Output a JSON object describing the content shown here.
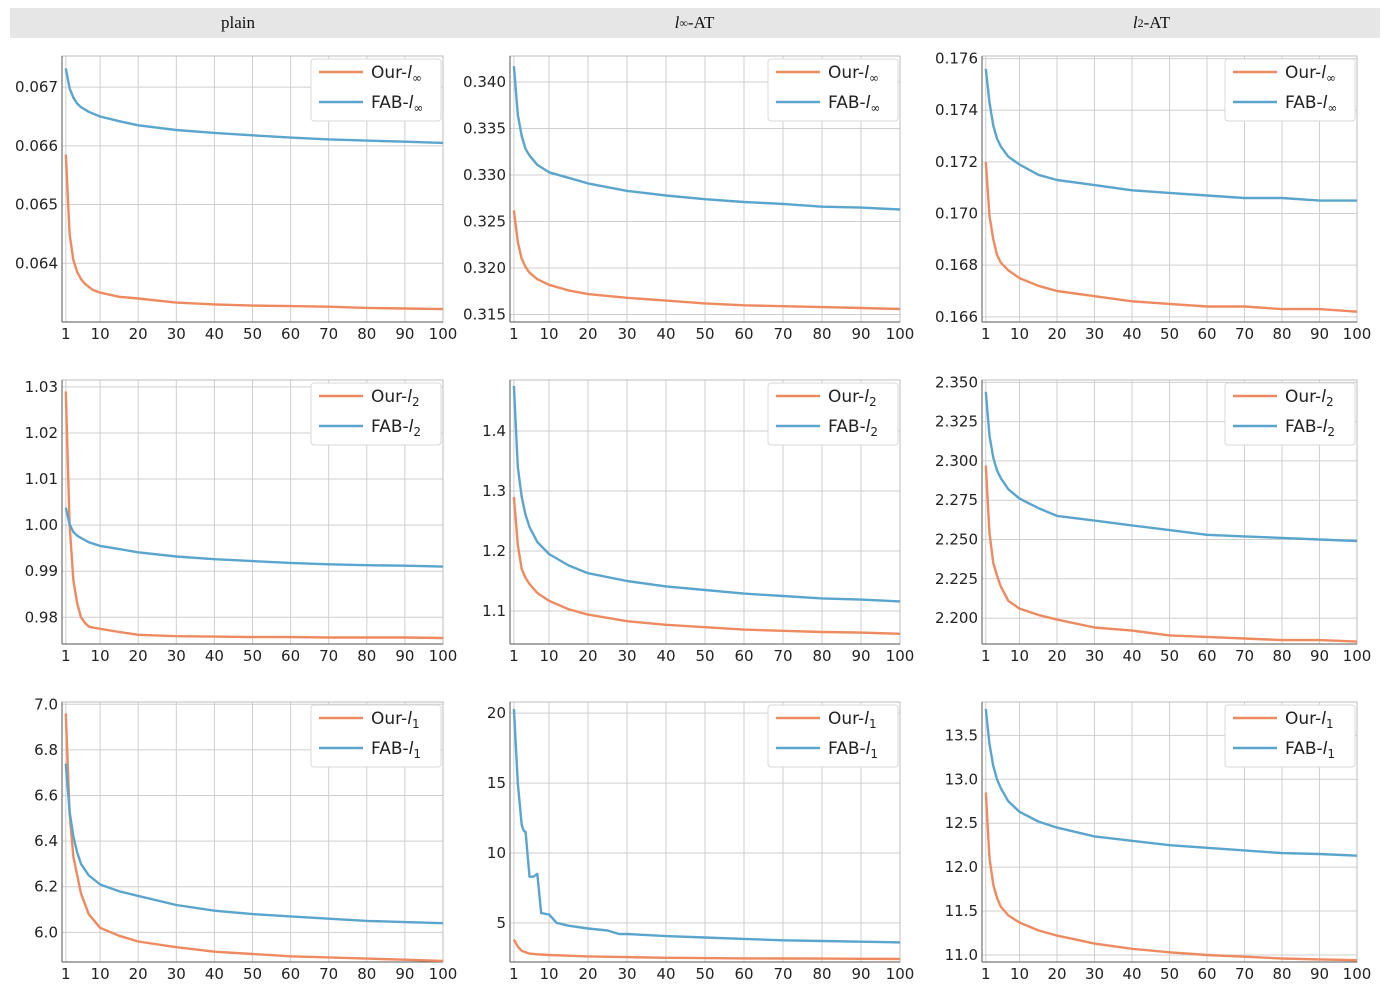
{
  "columns": [
    {
      "base": "plain",
      "sub": "",
      "suffix": ""
    },
    {
      "base": "l",
      "sub": "∞",
      "suffix": "-AT"
    },
    {
      "base": "l",
      "sub": "2",
      "suffix": "-AT"
    }
  ],
  "colors": {
    "ours": "#ee8a5f",
    "fab": "#5aa5cd",
    "grid": "#cfcfcf",
    "frame": "#bdbdbd",
    "header": "#e6e6e6"
  },
  "chart_data": [
    {
      "type": "line",
      "row": 0,
      "col": 0,
      "xlim": [
        0,
        100
      ],
      "ylim": [
        0.063,
        0.06753
      ],
      "xticks": [
        1,
        10,
        20,
        30,
        40,
        50,
        60,
        70,
        80,
        90,
        100
      ],
      "yticks": [
        0.064,
        0.065,
        0.066,
        0.067
      ],
      "yfmt": 3,
      "legend_sub": "∞",
      "series": [
        {
          "name": "Our",
          "norm": "∞",
          "x": [
            1,
            2,
            3,
            4,
            5,
            6,
            7,
            8,
            10,
            15,
            20,
            30,
            40,
            50,
            60,
            70,
            80,
            90,
            100
          ],
          "values": [
            0.06585,
            0.0645,
            0.06405,
            0.06385,
            0.06373,
            0.06365,
            0.0636,
            0.06355,
            0.0635,
            0.06343,
            0.0634,
            0.06333,
            0.0633,
            0.06328,
            0.06327,
            0.06326,
            0.06324,
            0.06323,
            0.06322
          ]
        },
        {
          "name": "FAB",
          "norm": "∞",
          "x": [
            1,
            2,
            3,
            4,
            5,
            7,
            10,
            15,
            20,
            30,
            40,
            50,
            60,
            70,
            80,
            90,
            100
          ],
          "values": [
            0.06732,
            0.06698,
            0.06682,
            0.06672,
            0.06666,
            0.06658,
            0.0665,
            0.06642,
            0.06635,
            0.06627,
            0.06622,
            0.06618,
            0.06614,
            0.06611,
            0.06609,
            0.06607,
            0.06605
          ]
        }
      ]
    },
    {
      "type": "line",
      "row": 0,
      "col": 1,
      "xlim": [
        0,
        100
      ],
      "ylim": [
        0.3142,
        0.3428
      ],
      "xticks": [
        1,
        10,
        20,
        30,
        40,
        50,
        60,
        70,
        80,
        90,
        100
      ],
      "yticks": [
        0.315,
        0.32,
        0.325,
        0.33,
        0.335,
        0.34
      ],
      "yfmt": 3,
      "legend_sub": "∞",
      "series": [
        {
          "name": "Our",
          "norm": "∞",
          "x": [
            1,
            2,
            3,
            4,
            5,
            7,
            10,
            15,
            20,
            30,
            40,
            50,
            60,
            70,
            80,
            90,
            100
          ],
          "values": [
            0.3262,
            0.3228,
            0.321,
            0.3201,
            0.3195,
            0.3188,
            0.3182,
            0.3176,
            0.3172,
            0.3168,
            0.3165,
            0.3162,
            0.316,
            0.3159,
            0.3158,
            0.3157,
            0.3156
          ]
        },
        {
          "name": "FAB",
          "norm": "∞",
          "x": [
            1,
            2,
            3,
            4,
            5,
            7,
            10,
            15,
            20,
            30,
            40,
            50,
            60,
            70,
            80,
            90,
            100
          ],
          "values": [
            0.3417,
            0.3365,
            0.3342,
            0.3328,
            0.3321,
            0.3311,
            0.3303,
            0.3297,
            0.3291,
            0.3283,
            0.3278,
            0.3274,
            0.3271,
            0.3269,
            0.3266,
            0.3265,
            0.3263
          ]
        }
      ]
    },
    {
      "type": "line",
      "row": 0,
      "col": 2,
      "xlim": [
        0,
        100
      ],
      "ylim": [
        0.1658,
        0.1761
      ],
      "xticks": [
        1,
        10,
        20,
        30,
        40,
        50,
        60,
        70,
        80,
        90,
        100
      ],
      "yticks": [
        0.166,
        0.168,
        0.17,
        0.172,
        0.174,
        0.176
      ],
      "yfmt": 3,
      "legend_sub": "∞",
      "series": [
        {
          "name": "Our",
          "norm": "∞",
          "x": [
            1,
            2,
            3,
            4,
            5,
            7,
            10,
            15,
            20,
            30,
            40,
            50,
            60,
            70,
            80,
            90,
            100
          ],
          "values": [
            0.172,
            0.1699,
            0.169,
            0.1684,
            0.1681,
            0.1678,
            0.1675,
            0.1672,
            0.167,
            0.1668,
            0.1666,
            0.1665,
            0.1664,
            0.1664,
            0.1663,
            0.1663,
            0.1662
          ]
        },
        {
          "name": "FAB",
          "norm": "∞",
          "x": [
            1,
            2,
            3,
            4,
            5,
            7,
            10,
            15,
            20,
            30,
            40,
            50,
            60,
            70,
            80,
            90,
            100
          ],
          "values": [
            0.1756,
            0.1743,
            0.1734,
            0.1729,
            0.1726,
            0.1722,
            0.1719,
            0.1715,
            0.1713,
            0.1711,
            0.1709,
            0.1708,
            0.1707,
            0.1706,
            0.1706,
            0.1705,
            0.1705
          ]
        }
      ]
    },
    {
      "type": "line",
      "row": 1,
      "col": 0,
      "xlim": [
        0,
        100
      ],
      "ylim": [
        0.9742,
        1.0315
      ],
      "xticks": [
        1,
        10,
        20,
        30,
        40,
        50,
        60,
        70,
        80,
        90,
        100
      ],
      "yticks": [
        0.98,
        0.99,
        1.0,
        1.01,
        1.02,
        1.03
      ],
      "yfmt": 2,
      "legend_sub": "2",
      "series": [
        {
          "name": "Our",
          "norm": "2",
          "x": [
            1,
            2,
            3,
            4,
            5,
            6,
            7,
            8,
            10,
            15,
            20,
            30,
            40,
            50,
            60,
            70,
            80,
            90,
            100
          ],
          "values": [
            1.029,
            1.0,
            0.988,
            0.983,
            0.98,
            0.9788,
            0.978,
            0.9778,
            0.9775,
            0.9768,
            0.9762,
            0.9759,
            0.9758,
            0.9757,
            0.9757,
            0.9756,
            0.9756,
            0.9756,
            0.9755
          ]
        },
        {
          "name": "FAB",
          "norm": "2",
          "x": [
            1,
            2,
            3,
            4,
            5,
            7,
            10,
            15,
            20,
            30,
            40,
            50,
            60,
            70,
            80,
            90,
            100
          ],
          "values": [
            1.0038,
            1.0002,
            0.9985,
            0.9977,
            0.9972,
            0.9963,
            0.9955,
            0.9948,
            0.9941,
            0.9932,
            0.9926,
            0.9922,
            0.9918,
            0.9915,
            0.9913,
            0.9912,
            0.991
          ]
        }
      ]
    },
    {
      "type": "line",
      "row": 1,
      "col": 1,
      "xlim": [
        0,
        100
      ],
      "ylim": [
        1.045,
        1.485
      ],
      "xticks": [
        1,
        10,
        20,
        30,
        40,
        50,
        60,
        70,
        80,
        90,
        100
      ],
      "yticks": [
        1.1,
        1.2,
        1.3,
        1.4
      ],
      "yfmt": 1,
      "legend_sub": "2",
      "series": [
        {
          "name": "Our",
          "norm": "2",
          "x": [
            1,
            2,
            3,
            4,
            5,
            7,
            10,
            15,
            20,
            30,
            40,
            50,
            60,
            70,
            80,
            90,
            100
          ],
          "values": [
            1.29,
            1.21,
            1.17,
            1.155,
            1.145,
            1.13,
            1.117,
            1.103,
            1.094,
            1.083,
            1.077,
            1.073,
            1.069,
            1.067,
            1.065,
            1.064,
            1.062
          ]
        },
        {
          "name": "FAB",
          "norm": "2",
          "x": [
            1,
            2,
            3,
            4,
            5,
            7,
            10,
            15,
            20,
            30,
            40,
            50,
            60,
            70,
            80,
            90,
            100
          ],
          "values": [
            1.475,
            1.34,
            1.29,
            1.26,
            1.24,
            1.215,
            1.195,
            1.176,
            1.163,
            1.15,
            1.141,
            1.135,
            1.129,
            1.125,
            1.121,
            1.119,
            1.116
          ]
        }
      ]
    },
    {
      "type": "line",
      "row": 1,
      "col": 2,
      "xlim": [
        0,
        100
      ],
      "ylim": [
        2.1835,
        2.3515
      ],
      "xticks": [
        1,
        10,
        20,
        30,
        40,
        50,
        60,
        70,
        80,
        90,
        100
      ],
      "yticks": [
        2.2,
        2.225,
        2.25,
        2.275,
        2.3,
        2.325,
        2.35
      ],
      "yfmt": 3,
      "legend_sub": "2",
      "series": [
        {
          "name": "Our",
          "norm": "2",
          "x": [
            1,
            2,
            3,
            4,
            5,
            7,
            10,
            15,
            20,
            30,
            40,
            50,
            60,
            70,
            80,
            90,
            100
          ],
          "values": [
            2.297,
            2.254,
            2.235,
            2.227,
            2.22,
            2.211,
            2.206,
            2.202,
            2.199,
            2.194,
            2.192,
            2.189,
            2.188,
            2.187,
            2.186,
            2.186,
            2.185
          ]
        },
        {
          "name": "FAB",
          "norm": "2",
          "x": [
            1,
            2,
            3,
            4,
            5,
            7,
            10,
            15,
            20,
            30,
            40,
            50,
            60,
            70,
            80,
            90,
            100
          ],
          "values": [
            2.344,
            2.316,
            2.302,
            2.294,
            2.289,
            2.282,
            2.276,
            2.27,
            2.265,
            2.262,
            2.259,
            2.256,
            2.253,
            2.252,
            2.251,
            2.25,
            2.249
          ]
        }
      ]
    },
    {
      "type": "line",
      "row": 2,
      "col": 0,
      "xlim": [
        0,
        100
      ],
      "ylim": [
        5.87,
        7.01
      ],
      "xticks": [
        1,
        10,
        20,
        30,
        40,
        50,
        60,
        70,
        80,
        90,
        100
      ],
      "yticks": [
        6.0,
        6.2,
        6.4,
        6.6,
        6.8,
        7.0
      ],
      "yfmt": 1,
      "legend_sub": "1",
      "series": [
        {
          "name": "Our",
          "norm": "1",
          "x": [
            1,
            2,
            3,
            4,
            5,
            7,
            10,
            15,
            20,
            30,
            40,
            50,
            60,
            70,
            80,
            90,
            100
          ],
          "values": [
            6.96,
            6.52,
            6.33,
            6.25,
            6.17,
            6.08,
            6.02,
            5.985,
            5.96,
            5.935,
            5.915,
            5.905,
            5.895,
            5.89,
            5.885,
            5.88,
            5.875
          ]
        },
        {
          "name": "FAB",
          "norm": "1",
          "x": [
            1,
            2,
            3,
            4,
            5,
            7,
            10,
            15,
            20,
            30,
            40,
            50,
            60,
            70,
            80,
            90,
            100
          ],
          "values": [
            6.74,
            6.53,
            6.42,
            6.35,
            6.3,
            6.25,
            6.21,
            6.18,
            6.16,
            6.12,
            6.095,
            6.08,
            6.07,
            6.06,
            6.05,
            6.045,
            6.04
          ]
        }
      ]
    },
    {
      "type": "line",
      "row": 2,
      "col": 1,
      "xlim": [
        0,
        100
      ],
      "ylim": [
        2.2,
        20.8
      ],
      "xticks": [
        1,
        10,
        20,
        30,
        40,
        50,
        60,
        70,
        80,
        90,
        100
      ],
      "yticks": [
        5,
        10,
        15,
        20
      ],
      "yfmt": 0,
      "legend_sub": "1",
      "series": [
        {
          "name": "Our",
          "norm": "1",
          "x": [
            1,
            2,
            3,
            4,
            5,
            7,
            10,
            15,
            20,
            30,
            40,
            50,
            60,
            70,
            80,
            90,
            100
          ],
          "values": [
            3.8,
            3.3,
            3.0,
            2.9,
            2.8,
            2.75,
            2.7,
            2.65,
            2.6,
            2.55,
            2.5,
            2.48,
            2.46,
            2.45,
            2.44,
            2.43,
            2.42
          ]
        },
        {
          "name": "FAB",
          "norm": "1",
          "x": [
            1,
            2,
            3,
            3.5,
            4,
            5,
            6,
            7,
            8,
            10,
            12,
            15,
            20,
            25,
            28,
            30,
            40,
            50,
            60,
            70,
            80,
            90,
            100
          ],
          "values": [
            20.3,
            15.0,
            12.0,
            11.6,
            11.5,
            8.3,
            8.3,
            8.5,
            5.7,
            5.6,
            5.0,
            4.8,
            4.6,
            4.45,
            4.2,
            4.2,
            4.05,
            3.95,
            3.85,
            3.75,
            3.7,
            3.65,
            3.6
          ]
        }
      ]
    },
    {
      "type": "line",
      "row": 2,
      "col": 2,
      "xlim": [
        0,
        100
      ],
      "ylim": [
        10.92,
        13.88
      ],
      "xticks": [
        1,
        10,
        20,
        30,
        40,
        50,
        60,
        70,
        80,
        90,
        100
      ],
      "yticks": [
        11.0,
        11.5,
        12.0,
        12.5,
        13.0,
        13.5
      ],
      "yfmt": 1,
      "legend_sub": "1",
      "series": [
        {
          "name": "Our",
          "norm": "1",
          "x": [
            1,
            2,
            3,
            4,
            5,
            7,
            10,
            15,
            20,
            30,
            40,
            50,
            60,
            70,
            80,
            90,
            100
          ],
          "values": [
            12.85,
            12.1,
            11.8,
            11.65,
            11.55,
            11.45,
            11.37,
            11.28,
            11.22,
            11.13,
            11.07,
            11.03,
            11.0,
            10.98,
            10.96,
            10.95,
            10.94
          ]
        },
        {
          "name": "FAB",
          "norm": "1",
          "x": [
            1,
            2,
            3,
            4,
            5,
            7,
            10,
            15,
            20,
            30,
            40,
            50,
            60,
            70,
            80,
            90,
            100
          ],
          "values": [
            13.8,
            13.4,
            13.15,
            13.0,
            12.9,
            12.75,
            12.63,
            12.52,
            12.45,
            12.35,
            12.3,
            12.25,
            12.22,
            12.19,
            12.16,
            12.15,
            12.13
          ]
        }
      ]
    }
  ]
}
